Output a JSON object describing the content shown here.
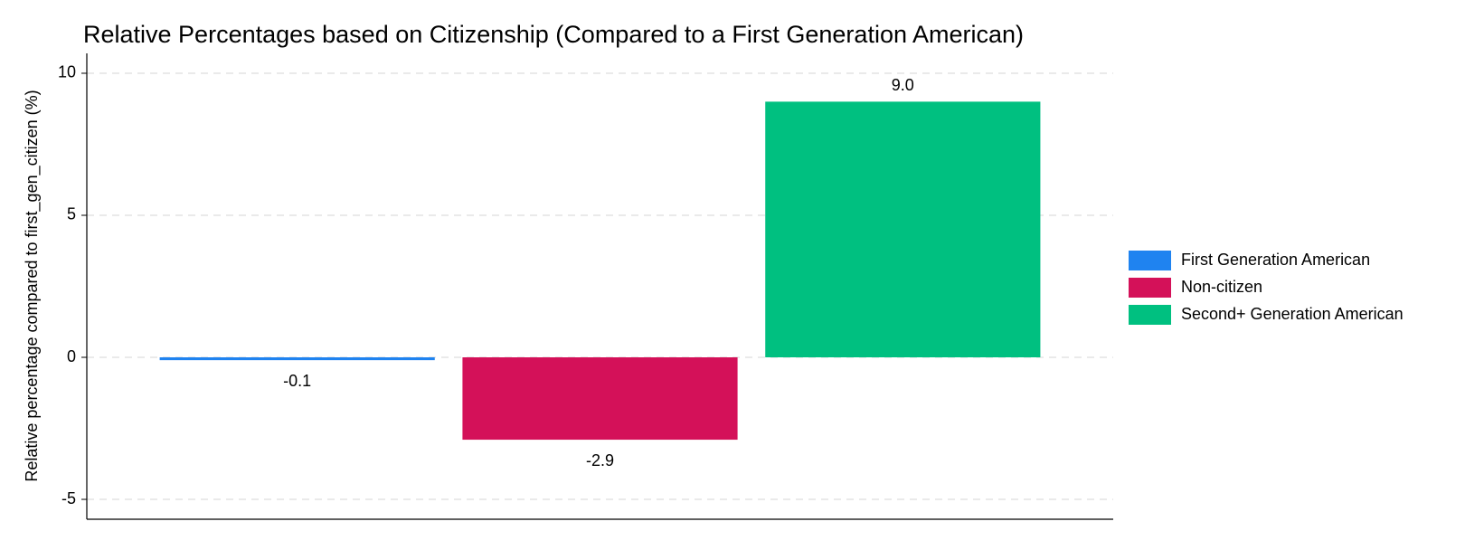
{
  "chart_data": {
    "type": "bar",
    "title": "Relative Percentages based on Citizenship (Compared to a First Generation American)",
    "ylabel": "Relative percentage compared to first_gen_citizen (%)",
    "categories": [
      "First Generation American",
      "Non-citizen",
      "Second+ Generation American"
    ],
    "values": [
      -0.1,
      -2.9,
      9.0
    ],
    "value_labels": [
      "-0.1",
      "-2.9",
      "9.0"
    ],
    "colors": [
      "#1f83f0",
      "#d41159",
      "#00c080"
    ],
    "ylim": [
      -5.7,
      10.7
    ],
    "yticks": [
      -5,
      0,
      5,
      10
    ],
    "grid": true,
    "legend": "right"
  }
}
